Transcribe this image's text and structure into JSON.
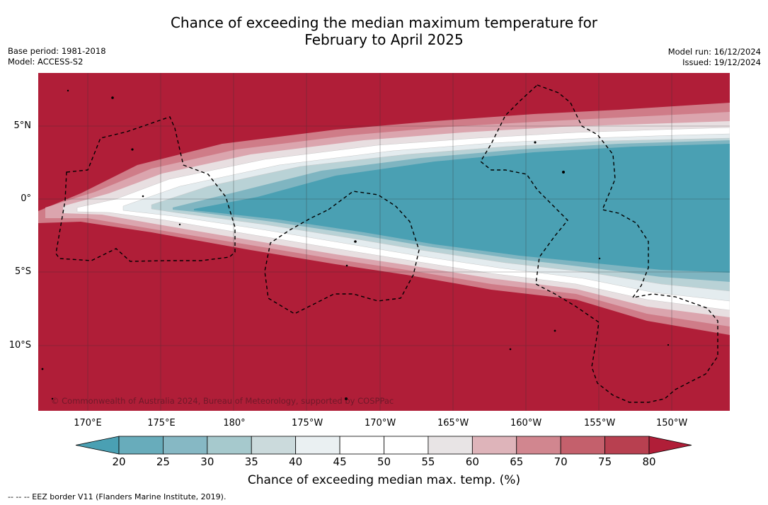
{
  "title_line1": "Chance of exceeding the median maximum temperature for",
  "title_line2": "February to April 2025",
  "base_period": "Base period: 1981-2018",
  "model": "Model: ACCESS-S2",
  "model_run": "Model run: 16/12/2024",
  "issued": "Issued: 19/12/2024",
  "copyright": "© Commonwealth of Australia 2024, Bureau of Meteorology, supported by COSPPac",
  "lon_ticks": [
    "170°E",
    "175°E",
    "180°",
    "175°W",
    "170°W",
    "165°W",
    "160°W",
    "155°W",
    "150°W"
  ],
  "lat_ticks": [
    "5°N",
    "0°",
    "5°S",
    "10°S"
  ],
  "colorbar": {
    "ticks": [
      "20",
      "25",
      "30",
      "35",
      "40",
      "45",
      "50",
      "55",
      "60",
      "65",
      "70",
      "75",
      "80"
    ],
    "label": "Chance of exceeding median max. temp. (%)",
    "colors": [
      "#4aa0b3",
      "#68acbb",
      "#86b8c4",
      "#a6c9cd",
      "#cbdadc",
      "#eaf0f2",
      "#ffffff",
      "#ffffff",
      "#e8e4e5",
      "#deb4ba",
      "#d1868f",
      "#c4606c",
      "#b84050",
      "#b01e38"
    ]
  },
  "eez_note": "--  --  -- EEZ border V11 (Flanders Marine Institute, 2019)."
}
